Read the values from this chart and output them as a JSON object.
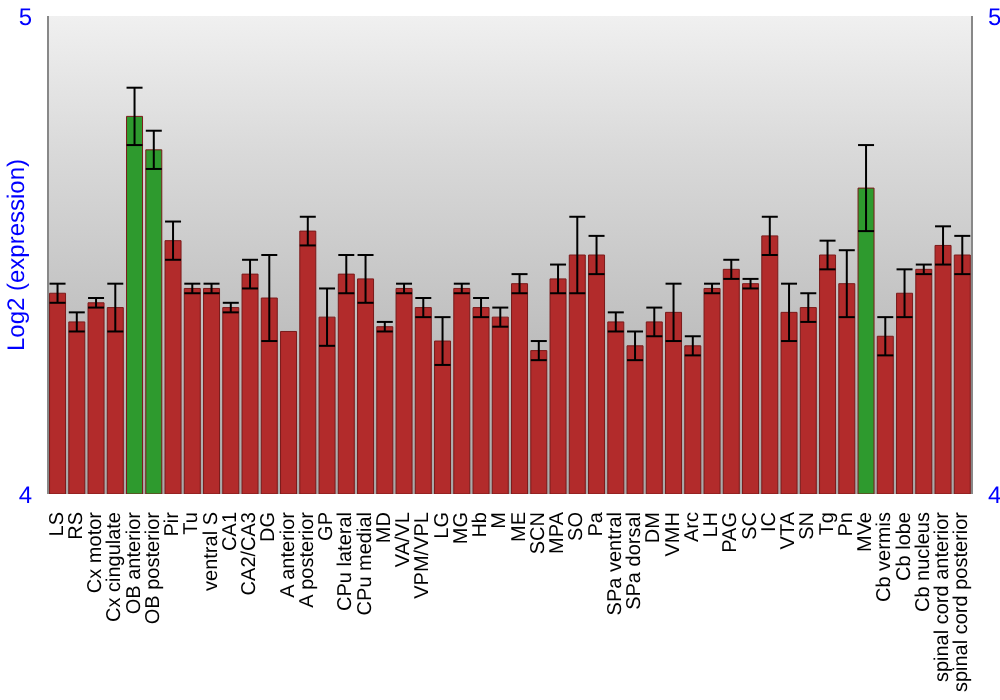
{
  "chart_data": {
    "type": "bar",
    "ylabel": "Log2 (expression)",
    "categories": [
      "LS",
      "RS",
      "Cx motor",
      "Cx cingulate",
      "OB anterior",
      "OB posterior",
      "Pir",
      "Tu",
      "ventral S",
      "CA1",
      "CA2/CA3",
      "DG",
      "A anterior",
      "A posterior",
      "GP",
      "CPu lateral",
      "CPu medial",
      "MD",
      "VA/VL",
      "VPM/VPL",
      "LG",
      "MG",
      "Hb",
      "M",
      "ME",
      "SCN",
      "MPA",
      "SO",
      "Pa",
      "SPa ventral",
      "SPa dorsal",
      "DM",
      "VMH",
      "Arc",
      "LH",
      "PAG",
      "SC",
      "IC",
      "VTA",
      "SN",
      "Tg",
      "Pn",
      "MVe",
      "Cb vermis",
      "Cb lobe",
      "Cb nucleus",
      "spinal cord anterior",
      "spinal cord posterior"
    ],
    "values": [
      4.42,
      4.36,
      4.4,
      4.39,
      4.79,
      4.72,
      4.53,
      4.43,
      4.43,
      4.39,
      4.46,
      4.41,
      4.34,
      4.55,
      4.37,
      4.46,
      4.45,
      4.35,
      4.43,
      4.39,
      4.32,
      4.43,
      4.39,
      4.37,
      4.44,
      4.3,
      4.45,
      4.5,
      4.5,
      4.36,
      4.31,
      4.36,
      4.38,
      4.31,
      4.43,
      4.47,
      4.44,
      4.54,
      4.38,
      4.39,
      4.5,
      4.44,
      4.64,
      4.33,
      4.42,
      4.47,
      4.52,
      4.5
    ],
    "errors": [
      0.02,
      0.02,
      0.01,
      0.05,
      0.06,
      0.04,
      0.04,
      0.01,
      0.01,
      0.01,
      0.03,
      0.09,
      null,
      0.03,
      0.06,
      0.04,
      0.05,
      0.01,
      0.01,
      0.02,
      0.05,
      0.01,
      0.02,
      0.02,
      0.02,
      0.02,
      0.03,
      0.08,
      0.04,
      0.02,
      0.03,
      0.03,
      0.06,
      0.02,
      0.01,
      0.02,
      0.01,
      0.04,
      0.06,
      0.03,
      0.03,
      0.07,
      0.09,
      0.04,
      0.05,
      0.01,
      0.04,
      0.04
    ],
    "colors": [
      "#b22b2b",
      "#b22b2b",
      "#b22b2b",
      "#b22b2b",
      "#2e9a2e",
      "#2e9a2e",
      "#b22b2b",
      "#b22b2b",
      "#b22b2b",
      "#b22b2b",
      "#b22b2b",
      "#b22b2b",
      "#b22b2b",
      "#b22b2b",
      "#b22b2b",
      "#b22b2b",
      "#b22b2b",
      "#b22b2b",
      "#b22b2b",
      "#b22b2b",
      "#b22b2b",
      "#b22b2b",
      "#b22b2b",
      "#b22b2b",
      "#b22b2b",
      "#b22b2b",
      "#b22b2b",
      "#b22b2b",
      "#b22b2b",
      "#b22b2b",
      "#b22b2b",
      "#b22b2b",
      "#b22b2b",
      "#b22b2b",
      "#b22b2b",
      "#b22b2b",
      "#b22b2b",
      "#b22b2b",
      "#b22b2b",
      "#b22b2b",
      "#b22b2b",
      "#b22b2b",
      "#2e9a2e",
      "#b22b2b",
      "#b22b2b",
      "#b22b2b",
      "#b22b2b",
      "#b22b2b"
    ],
    "ylim": [
      4,
      5
    ],
    "yticks": [
      4,
      5
    ],
    "y2lim": [
      4,
      5
    ],
    "y2ticks": [
      4,
      5
    ]
  }
}
